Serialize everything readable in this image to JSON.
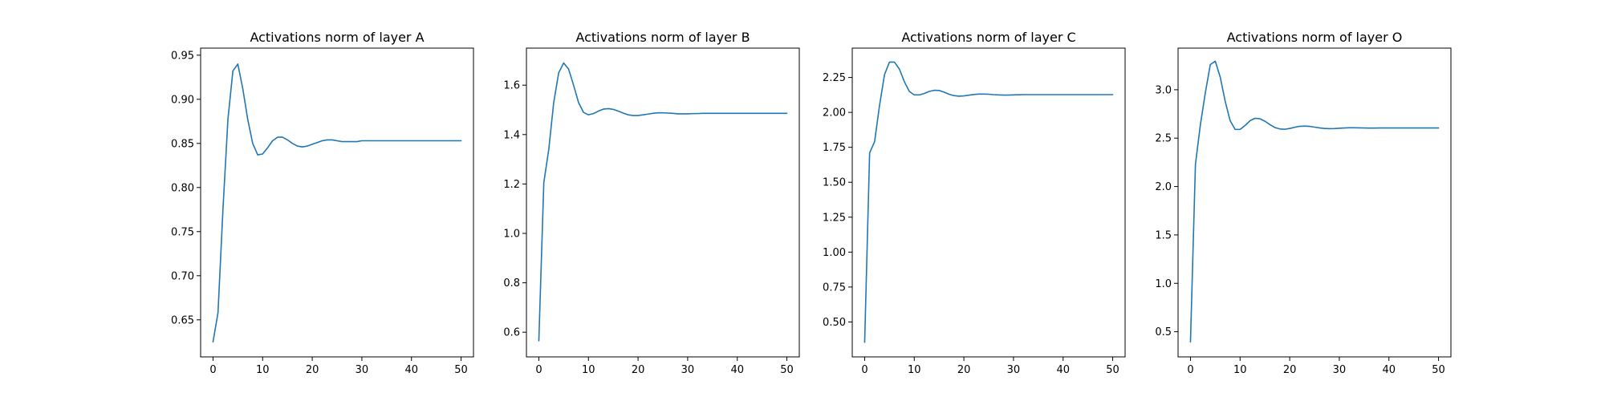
{
  "colors": {
    "line": "#1f77b4",
    "axes": "#000000",
    "background": "#ffffff"
  },
  "chart_data": [
    {
      "type": "line",
      "title": "Activations norm of layer A",
      "xlabel": "",
      "ylabel": "",
      "grid": false,
      "xlim": [
        -2.5,
        52.5
      ],
      "ylim": [
        0.608,
        0.958
      ],
      "xticks": [
        0,
        10,
        20,
        30,
        40,
        50
      ],
      "yticks": [
        0.65,
        0.7,
        0.75,
        0.8,
        0.85,
        0.9,
        0.95
      ],
      "ytick_labels": [
        "0.65",
        "0.70",
        "0.75",
        "0.80",
        "0.85",
        "0.90",
        "0.95"
      ],
      "series": [
        {
          "x": [
            0,
            1,
            2,
            3,
            4,
            5,
            6,
            7,
            8,
            9,
            10,
            11,
            12,
            13,
            14,
            15,
            16,
            17,
            18,
            19,
            20,
            21,
            22,
            23,
            24,
            25,
            26,
            27,
            28,
            29,
            30,
            31,
            32,
            33,
            34,
            35,
            36,
            37,
            38,
            39,
            40,
            41,
            42,
            43,
            44,
            45,
            46,
            47,
            48,
            49,
            50
          ],
          "values": [
            0.625,
            0.658,
            0.775,
            0.877,
            0.932,
            0.94,
            0.912,
            0.877,
            0.85,
            0.837,
            0.838,
            0.845,
            0.853,
            0.857,
            0.857,
            0.854,
            0.85,
            0.847,
            0.846,
            0.847,
            0.849,
            0.851,
            0.853,
            0.854,
            0.854,
            0.853,
            0.852,
            0.852,
            0.852,
            0.852,
            0.853,
            0.853,
            0.853,
            0.853,
            0.853,
            0.853,
            0.853,
            0.853,
            0.853,
            0.853,
            0.853,
            0.853,
            0.853,
            0.853,
            0.853,
            0.853,
            0.853,
            0.853,
            0.853,
            0.853,
            0.853
          ]
        }
      ]
    },
    {
      "type": "line",
      "title": "Activations norm of layer B",
      "xlabel": "",
      "ylabel": "",
      "grid": false,
      "xlim": [
        -2.5,
        52.5
      ],
      "ylim": [
        0.5,
        1.75
      ],
      "xticks": [
        0,
        10,
        20,
        30,
        40,
        50
      ],
      "yticks": [
        0.6,
        0.8,
        1.0,
        1.2,
        1.4,
        1.6
      ],
      "ytick_labels": [
        "0.6",
        "0.8",
        "1.0",
        "1.2",
        "1.4",
        "1.6"
      ],
      "series": [
        {
          "x": [
            0,
            1,
            2,
            3,
            4,
            5,
            6,
            7,
            8,
            9,
            10,
            11,
            12,
            13,
            14,
            15,
            16,
            17,
            18,
            19,
            20,
            21,
            22,
            23,
            24,
            25,
            26,
            27,
            28,
            29,
            30,
            31,
            32,
            33,
            34,
            35,
            36,
            37,
            38,
            39,
            40,
            41,
            42,
            43,
            44,
            45,
            46,
            47,
            48,
            49,
            50
          ],
          "values": [
            0.565,
            1.205,
            1.34,
            1.53,
            1.65,
            1.69,
            1.665,
            1.6,
            1.53,
            1.49,
            1.48,
            1.485,
            1.495,
            1.503,
            1.505,
            1.502,
            1.495,
            1.487,
            1.48,
            1.477,
            1.477,
            1.48,
            1.483,
            1.486,
            1.488,
            1.488,
            1.487,
            1.486,
            1.484,
            1.484,
            1.484,
            1.485,
            1.485,
            1.486,
            1.486,
            1.486,
            1.486,
            1.486,
            1.486,
            1.486,
            1.486,
            1.486,
            1.486,
            1.486,
            1.486,
            1.486,
            1.486,
            1.486,
            1.486,
            1.486,
            1.486
          ]
        }
      ]
    },
    {
      "type": "line",
      "title": "Activations norm of layer C",
      "xlabel": "",
      "ylabel": "",
      "grid": false,
      "xlim": [
        -2.5,
        52.5
      ],
      "ylim": [
        0.25,
        2.46
      ],
      "xticks": [
        0,
        10,
        20,
        30,
        40,
        50
      ],
      "yticks": [
        0.5,
        0.75,
        1.0,
        1.25,
        1.5,
        1.75,
        2.0,
        2.25
      ],
      "ytick_labels": [
        "0.50",
        "0.75",
        "1.00",
        "1.25",
        "1.50",
        "1.75",
        "2.00",
        "2.25"
      ],
      "series": [
        {
          "x": [
            0,
            1,
            2,
            3,
            4,
            5,
            6,
            7,
            8,
            9,
            10,
            11,
            12,
            13,
            14,
            15,
            16,
            17,
            18,
            19,
            20,
            21,
            22,
            23,
            24,
            25,
            26,
            27,
            28,
            29,
            30,
            31,
            32,
            33,
            34,
            35,
            36,
            37,
            38,
            39,
            40,
            41,
            42,
            43,
            44,
            45,
            46,
            47,
            48,
            49,
            50
          ],
          "values": [
            0.355,
            1.71,
            1.79,
            2.05,
            2.27,
            2.36,
            2.36,
            2.31,
            2.22,
            2.15,
            2.125,
            2.125,
            2.135,
            2.15,
            2.158,
            2.157,
            2.145,
            2.13,
            2.12,
            2.116,
            2.118,
            2.123,
            2.128,
            2.131,
            2.131,
            2.13,
            2.127,
            2.125,
            2.124,
            2.124,
            2.125,
            2.126,
            2.127,
            2.127,
            2.127,
            2.127,
            2.127,
            2.127,
            2.127,
            2.127,
            2.127,
            2.127,
            2.127,
            2.127,
            2.127,
            2.127,
            2.127,
            2.127,
            2.127,
            2.127,
            2.127
          ]
        }
      ]
    },
    {
      "type": "line",
      "title": "Activations norm of layer O",
      "xlabel": "",
      "ylabel": "",
      "grid": false,
      "xlim": [
        -2.5,
        52.5
      ],
      "ylim": [
        0.24,
        3.43
      ],
      "xticks": [
        0,
        10,
        20,
        30,
        40,
        50
      ],
      "yticks": [
        0.5,
        1.0,
        1.5,
        2.0,
        2.5,
        3.0
      ],
      "ytick_labels": [
        "0.5",
        "1.0",
        "1.5",
        "2.0",
        "2.5",
        "3.0"
      ],
      "series": [
        {
          "x": [
            0,
            1,
            2,
            3,
            4,
            5,
            6,
            7,
            8,
            9,
            10,
            11,
            12,
            13,
            14,
            15,
            16,
            17,
            18,
            19,
            20,
            21,
            22,
            23,
            24,
            25,
            26,
            27,
            28,
            29,
            30,
            31,
            32,
            33,
            34,
            35,
            36,
            37,
            38,
            39,
            40,
            41,
            42,
            43,
            44,
            45,
            46,
            47,
            48,
            49,
            50
          ],
          "values": [
            0.395,
            2.23,
            2.64,
            2.97,
            3.26,
            3.295,
            3.13,
            2.88,
            2.68,
            2.59,
            2.59,
            2.63,
            2.68,
            2.705,
            2.7,
            2.675,
            2.64,
            2.61,
            2.595,
            2.592,
            2.6,
            2.612,
            2.622,
            2.625,
            2.622,
            2.614,
            2.606,
            2.6,
            2.598,
            2.599,
            2.602,
            2.605,
            2.607,
            2.607,
            2.606,
            2.605,
            2.604,
            2.604,
            2.605,
            2.605,
            2.605,
            2.605,
            2.605,
            2.605,
            2.605,
            2.605,
            2.605,
            2.605,
            2.605,
            2.605,
            2.605
          ]
        }
      ]
    }
  ]
}
